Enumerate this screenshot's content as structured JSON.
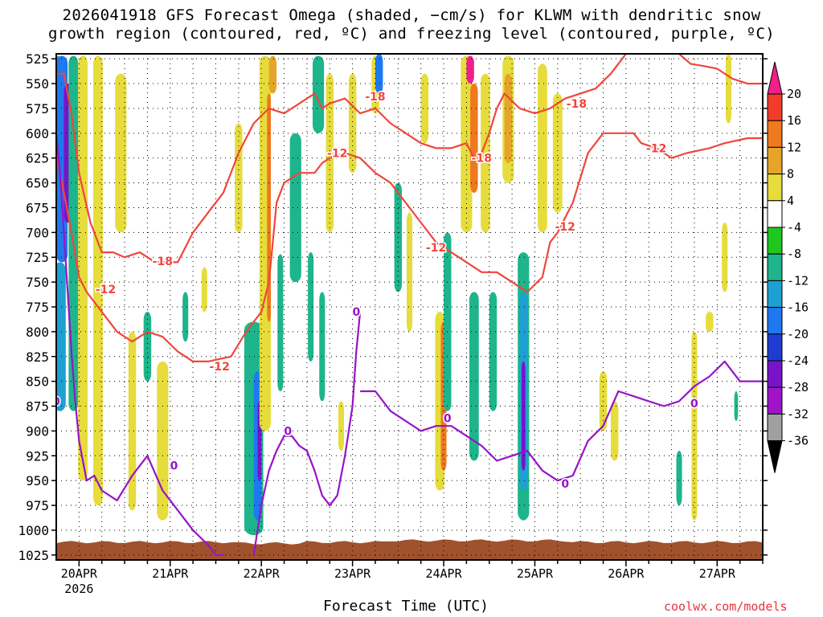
{
  "title_line1": "2026041918 GFS Forecast Omega (shaded, −cm/s) for KLWM with dendritic snow",
  "title_line2": "growth region (contoured, red, ºC) and freezing level (contoured, purple, ºC)",
  "x_axis_title": "Forecast Time (UTC)",
  "credit": "coolwx.com/models",
  "year_label": "2026",
  "chart_data": {
    "type": "heatmap",
    "title": "2026041918 GFS Forecast Omega for KLWM",
    "xlabel": "Forecast Time (UTC)",
    "ylabel": "Pressure (hPa)",
    "y_ticks": [
      525,
      550,
      575,
      600,
      625,
      650,
      675,
      700,
      725,
      750,
      775,
      800,
      825,
      850,
      875,
      900,
      925,
      950,
      975,
      1000,
      1025
    ],
    "y_range": [
      520,
      1030
    ],
    "x_range_hours": [
      -6,
      180
    ],
    "x_ticks": [
      {
        "label": "20APR",
        "hour": 0
      },
      {
        "label": "21APR",
        "hour": 24
      },
      {
        "label": "22APR",
        "hour": 48
      },
      {
        "label": "23APR",
        "hour": 72
      },
      {
        "label": "24APR",
        "hour": 96
      },
      {
        "label": "25APR",
        "hour": 120
      },
      {
        "label": "26APR",
        "hour": 144
      },
      {
        "label": "27APR",
        "hour": 168
      }
    ],
    "colorbar": {
      "labels": [
        "20",
        "16",
        "12",
        "8",
        "4",
        "-4",
        "-8",
        "-12",
        "-16",
        "-20",
        "-24",
        "-28",
        "-32",
        "-36"
      ],
      "colors": [
        "#f0208a",
        "#f23c2a",
        "#f0781e",
        "#e6a52a",
        "#e6dc3c",
        "#ffffff",
        "#1ec81e",
        "#1eb48c",
        "#1ea0d2",
        "#1e78f0",
        "#1e3cd2",
        "#7814c8",
        "#a014c8",
        "#a0a0a0",
        "#000000"
      ]
    },
    "omega_cells": [
      {
        "h": -5.5,
        "w": 1.5,
        "p0": 522,
        "p1": 640,
        "v": -8
      },
      {
        "h": -4.5,
        "w": 3,
        "p0": 522,
        "p1": 730,
        "v": -16
      },
      {
        "h": -3,
        "w": 2,
        "p0": 550,
        "p1": 690,
        "v": -24
      },
      {
        "h": -5,
        "w": 3,
        "p0": 730,
        "p1": 880,
        "v": -12
      },
      {
        "h": -1.5,
        "w": 2.5,
        "p0": 522,
        "p1": 880,
        "v": -8
      },
      {
        "h": 1,
        "w": 2.5,
        "p0": 522,
        "p1": 950,
        "v": 4
      },
      {
        "h": 5,
        "w": 2.5,
        "p0": 522,
        "p1": 975,
        "v": 4
      },
      {
        "h": 11,
        "w": 3,
        "p0": 540,
        "p1": 700,
        "v": 4
      },
      {
        "h": 14,
        "w": 2,
        "p0": 800,
        "p1": 980,
        "v": 4
      },
      {
        "h": 18,
        "w": 2,
        "p0": 780,
        "p1": 850,
        "v": -8
      },
      {
        "h": 22,
        "w": 3,
        "p0": 830,
        "p1": 990,
        "v": 4
      },
      {
        "h": 28,
        "w": 1.5,
        "p0": 760,
        "p1": 810,
        "v": -8
      },
      {
        "h": 33,
        "w": 1.5,
        "p0": 735,
        "p1": 780,
        "v": 4
      },
      {
        "h": 42,
        "w": 2,
        "p0": 590,
        "p1": 700,
        "v": 4
      },
      {
        "h": 46,
        "w": 5,
        "p0": 790,
        "p1": 1005,
        "v": -8
      },
      {
        "h": 47,
        "w": 2,
        "p0": 840,
        "p1": 990,
        "v": -16
      },
      {
        "h": 47.5,
        "w": 1,
        "p0": 870,
        "p1": 950,
        "v": -24
      },
      {
        "h": 49,
        "w": 3,
        "p0": 522,
        "p1": 900,
        "v": 4
      },
      {
        "h": 50,
        "w": 1,
        "p0": 560,
        "p1": 790,
        "v": 12
      },
      {
        "h": 51,
        "w": 2,
        "p0": 522,
        "p1": 560,
        "v": 8
      },
      {
        "h": 53,
        "w": 1.5,
        "p0": 722,
        "p1": 860,
        "v": -8
      },
      {
        "h": 57,
        "w": 3,
        "p0": 600,
        "p1": 750,
        "v": -8
      },
      {
        "h": 63,
        "w": 3,
        "p0": 522,
        "p1": 600,
        "v": -8
      },
      {
        "h": 61,
        "w": 1.5,
        "p0": 720,
        "p1": 830,
        "v": -8
      },
      {
        "h": 64,
        "w": 1.5,
        "p0": 760,
        "p1": 870,
        "v": -8
      },
      {
        "h": 66,
        "w": 2,
        "p0": 540,
        "p1": 700,
        "v": 4
      },
      {
        "h": 69,
        "w": 1.5,
        "p0": 870,
        "p1": 920,
        "v": 4
      },
      {
        "h": 72,
        "w": 2,
        "p0": 540,
        "p1": 640,
        "v": 4
      },
      {
        "h": 78,
        "w": 2,
        "p0": 522,
        "p1": 580,
        "v": 4
      },
      {
        "h": 79,
        "w": 2,
        "p0": 520,
        "p1": 560,
        "v": -16
      },
      {
        "h": 84,
        "w": 2,
        "p0": 650,
        "p1": 760,
        "v": -8
      },
      {
        "h": 87,
        "w": 1.5,
        "p0": 680,
        "p1": 800,
        "v": 4
      },
      {
        "h": 91,
        "w": 2,
        "p0": 540,
        "p1": 610,
        "v": 4
      },
      {
        "h": 95,
        "w": 2.5,
        "p0": 780,
        "p1": 960,
        "v": 4
      },
      {
        "h": 96,
        "w": 1.5,
        "p0": 790,
        "p1": 940,
        "v": 12
      },
      {
        "h": 97,
        "w": 2,
        "p0": 700,
        "p1": 880,
        "v": -8
      },
      {
        "h": 102,
        "w": 3,
        "p0": 522,
        "p1": 700,
        "v": 4
      },
      {
        "h": 103,
        "w": 2,
        "p0": 522,
        "p1": 550,
        "v": 20
      },
      {
        "h": 104,
        "w": 2,
        "p0": 550,
        "p1": 660,
        "v": 12
      },
      {
        "h": 104,
        "w": 2.5,
        "p0": 760,
        "p1": 930,
        "v": -8
      },
      {
        "h": 107,
        "w": 2.5,
        "p0": 540,
        "p1": 700,
        "v": 4
      },
      {
        "h": 109,
        "w": 2,
        "p0": 760,
        "p1": 880,
        "v": -8
      },
      {
        "h": 113,
        "w": 3,
        "p0": 522,
        "p1": 650,
        "v": 4
      },
      {
        "h": 113,
        "w": 2,
        "p0": 540,
        "p1": 630,
        "v": 8
      },
      {
        "h": 117,
        "w": 3,
        "p0": 720,
        "p1": 990,
        "v": -8
      },
      {
        "h": 117,
        "w": 2,
        "p0": 760,
        "p1": 960,
        "v": -12
      },
      {
        "h": 117,
        "w": 1,
        "p0": 830,
        "p1": 940,
        "v": -24
      },
      {
        "h": 122,
        "w": 2.5,
        "p0": 530,
        "p1": 700,
        "v": 4
      },
      {
        "h": 126,
        "w": 2.5,
        "p0": 560,
        "p1": 680,
        "v": 4
      },
      {
        "h": 138,
        "w": 2,
        "p0": 840,
        "p1": 900,
        "v": 4
      },
      {
        "h": 141,
        "w": 2,
        "p0": 870,
        "p1": 930,
        "v": 4
      },
      {
        "h": 158,
        "w": 1.5,
        "p0": 920,
        "p1": 975,
        "v": -8
      },
      {
        "h": 162,
        "w": 1.5,
        "p0": 800,
        "p1": 990,
        "v": 4
      },
      {
        "h": 166,
        "w": 2,
        "p0": 780,
        "p1": 800,
        "v": 4
      },
      {
        "h": 170,
        "w": 1.5,
        "p0": 690,
        "p1": 760,
        "v": 4
      },
      {
        "h": 171,
        "w": 1.5,
        "p0": 520,
        "p1": 590,
        "v": 4
      },
      {
        "h": 173,
        "w": 1,
        "p0": 860,
        "p1": 890,
        "v": -8
      }
    ],
    "red_contours": [
      {
        "level": -18,
        "points": [
          [
            -6,
            540
          ],
          [
            -4,
            540
          ],
          [
            -3,
            560
          ],
          [
            -2,
            580
          ],
          [
            0,
            640
          ],
          [
            3,
            690
          ],
          [
            6,
            720
          ],
          [
            9,
            720
          ],
          [
            12,
            725
          ],
          [
            16,
            720
          ],
          [
            20,
            730
          ],
          [
            26,
            730
          ],
          [
            30,
            700
          ],
          [
            34,
            680
          ],
          [
            38,
            660
          ],
          [
            42,
            620
          ],
          [
            46,
            590
          ],
          [
            50,
            575
          ],
          [
            54,
            580
          ],
          [
            58,
            570
          ],
          [
            62,
            560
          ],
          [
            64,
            575
          ],
          [
            66,
            570
          ],
          [
            70,
            565
          ],
          [
            74,
            580
          ],
          [
            78,
            575
          ],
          [
            82,
            590
          ],
          [
            86,
            600
          ],
          [
            90,
            610
          ],
          [
            94,
            615
          ],
          [
            98,
            615
          ],
          [
            102,
            610
          ],
          [
            104,
            625
          ],
          [
            106,
            620
          ],
          [
            108,
            600
          ],
          [
            110,
            575
          ],
          [
            112,
            560
          ],
          [
            116,
            575
          ],
          [
            120,
            580
          ],
          [
            124,
            575
          ],
          [
            128,
            565
          ],
          [
            132,
            560
          ],
          [
            136,
            555
          ],
          [
            140,
            540
          ],
          [
            144,
            520
          ]
        ]
      },
      {
        "level": -18,
        "points": [
          [
            158,
            520
          ],
          [
            161,
            530
          ],
          [
            164,
            532
          ],
          [
            168,
            535
          ],
          [
            172,
            545
          ],
          [
            176,
            550
          ],
          [
            180,
            550
          ]
        ]
      },
      {
        "level": -12,
        "points": [
          [
            -6,
            620
          ],
          [
            -4,
            660
          ],
          [
            -2,
            700
          ],
          [
            0,
            745
          ],
          [
            2,
            760
          ],
          [
            6,
            780
          ],
          [
            10,
            800
          ],
          [
            14,
            810
          ],
          [
            18,
            800
          ],
          [
            22,
            805
          ],
          [
            26,
            820
          ],
          [
            30,
            830
          ],
          [
            34,
            830
          ],
          [
            40,
            825
          ],
          [
            44,
            800
          ],
          [
            48,
            780
          ],
          [
            50,
            750
          ],
          [
            51,
            710
          ],
          [
            52,
            670
          ],
          [
            54,
            650
          ],
          [
            58,
            640
          ],
          [
            62,
            640
          ],
          [
            64,
            630
          ],
          [
            66,
            625
          ],
          [
            70,
            620
          ],
          [
            74,
            625
          ],
          [
            78,
            640
          ],
          [
            82,
            650
          ],
          [
            86,
            670
          ],
          [
            90,
            690
          ],
          [
            94,
            710
          ],
          [
            98,
            720
          ],
          [
            102,
            730
          ],
          [
            106,
            740
          ],
          [
            110,
            740
          ],
          [
            114,
            750
          ],
          [
            118,
            760
          ],
          [
            122,
            745
          ],
          [
            124,
            710
          ],
          [
            126,
            700
          ],
          [
            130,
            670
          ],
          [
            134,
            620
          ],
          [
            138,
            600
          ],
          [
            142,
            600
          ],
          [
            146,
            600
          ],
          [
            148,
            610
          ],
          [
            152,
            615
          ],
          [
            156,
            625
          ],
          [
            160,
            620
          ],
          [
            166,
            615
          ],
          [
            170,
            610
          ],
          [
            176,
            605
          ],
          [
            180,
            605
          ]
        ]
      }
    ],
    "red_contour_labels": [
      {
        "text": "-18",
        "hour": 22,
        "p": 729
      },
      {
        "text": "-18",
        "hour": 78,
        "p": 563
      },
      {
        "text": "-18",
        "hour": 106,
        "p": 625
      },
      {
        "text": "-18",
        "hour": 131,
        "p": 570
      },
      {
        "text": "-12",
        "hour": 7,
        "p": 757
      },
      {
        "text": "-12",
        "hour": 37,
        "p": 835
      },
      {
        "text": "-12",
        "hour": 68,
        "p": 620
      },
      {
        "text": "-12",
        "hour": 94,
        "p": 715
      },
      {
        "text": "-12",
        "hour": 128,
        "p": 694
      },
      {
        "text": "-12",
        "hour": 152,
        "p": 615
      }
    ],
    "purple_contours": [
      {
        "level": 0,
        "points": [
          [
            -6,
            600
          ],
          [
            -5,
            640
          ],
          [
            -4,
            700
          ],
          [
            -3,
            760
          ],
          [
            -2,
            820
          ],
          [
            -1,
            870
          ],
          [
            0,
            910
          ],
          [
            1,
            930
          ],
          [
            2,
            950
          ],
          [
            4,
            945
          ],
          [
            6,
            960
          ],
          [
            10,
            970
          ],
          [
            14,
            945
          ],
          [
            18,
            925
          ],
          [
            22,
            960
          ],
          [
            26,
            980
          ],
          [
            30,
            1000
          ],
          [
            34,
            1015
          ],
          [
            36,
            1025
          ],
          [
            38,
            1025
          ]
        ]
      },
      {
        "level": 0,
        "points": [
          [
            46,
            1025
          ],
          [
            48,
            975
          ],
          [
            50,
            940
          ],
          [
            52,
            920
          ],
          [
            54,
            905
          ],
          [
            56,
            905
          ],
          [
            58,
            915
          ],
          [
            60,
            920
          ],
          [
            62,
            940
          ],
          [
            64,
            965
          ],
          [
            66,
            975
          ],
          [
            68,
            965
          ],
          [
            70,
            925
          ],
          [
            72,
            875
          ],
          [
            73,
            820
          ],
          [
            74,
            780
          ]
        ]
      },
      {
        "level": 0,
        "points": [
          [
            74,
            860
          ],
          [
            78,
            860
          ],
          [
            82,
            880
          ],
          [
            86,
            890
          ],
          [
            90,
            900
          ],
          [
            94,
            895
          ],
          [
            98,
            895
          ],
          [
            102,
            905
          ],
          [
            106,
            915
          ],
          [
            110,
            930
          ],
          [
            114,
            925
          ],
          [
            118,
            920
          ],
          [
            122,
            940
          ],
          [
            126,
            950
          ],
          [
            130,
            945
          ],
          [
            134,
            910
          ],
          [
            138,
            895
          ],
          [
            142,
            860
          ],
          [
            146,
            865
          ],
          [
            150,
            870
          ],
          [
            154,
            875
          ],
          [
            158,
            870
          ],
          [
            162,
            855
          ],
          [
            166,
            845
          ],
          [
            170,
            830
          ],
          [
            174,
            850
          ],
          [
            178,
            850
          ],
          [
            180,
            850
          ]
        ]
      }
    ],
    "purple_contour_labels": [
      {
        "text": "0",
        "hour": -6,
        "p": 870
      },
      {
        "text": "0",
        "hour": 25,
        "p": 935
      },
      {
        "text": "0",
        "hour": 55,
        "p": 900
      },
      {
        "text": "0",
        "hour": 73,
        "p": 780
      },
      {
        "text": "0",
        "hour": 97,
        "p": 887
      },
      {
        "text": "0",
        "hour": 128,
        "p": 953
      },
      {
        "text": "0",
        "hour": 162,
        "p": 872
      }
    ],
    "terrain_color": "#a0522d",
    "terrain_top_hpa": 1012
  }
}
